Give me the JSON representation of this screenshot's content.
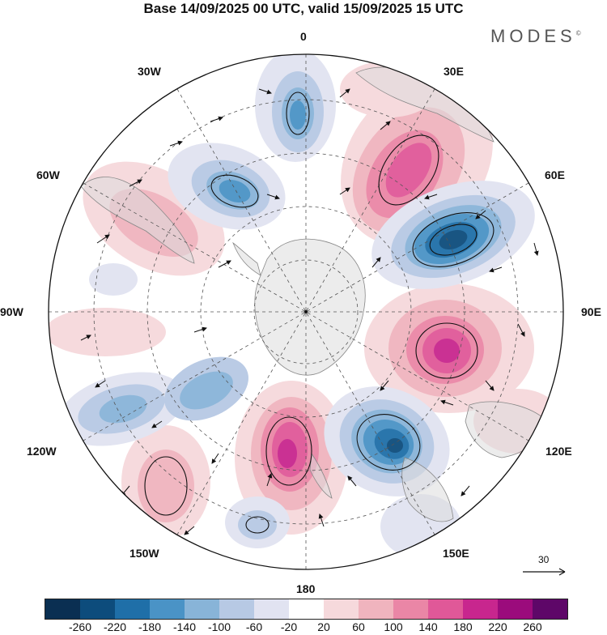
{
  "title": "Base 14/09/2025 00 UTC, valid 15/09/2025 15 UTC",
  "brand": "MODES",
  "brand_mark": "©",
  "longitude_labels": {
    "top": "0",
    "top_left": "30W",
    "top_right": "30E",
    "left_upper": "60W",
    "right_upper": "60E",
    "left": "90W",
    "right": "90E",
    "left_lower": "120W",
    "right_lower": "120E",
    "bottom_left": "150W",
    "bottom_right": "150E",
    "bottom": "180"
  },
  "reference_vector": {
    "value": "30",
    "icon": "arrow-right-icon"
  },
  "colorbar": {
    "colors": [
      "#0a2f52",
      "#0d4c7c",
      "#1f6fa8",
      "#4a93c6",
      "#88b4d8",
      "#b7c9e4",
      "#e1e3f1",
      "#ffffff",
      "#f6d9dc",
      "#f0b4be",
      "#ea86a6",
      "#e05898",
      "#c8268e",
      "#9b0b7c",
      "#5e0768"
    ],
    "ticks": [
      "-260",
      "-220",
      "-180",
      "-140",
      "-100",
      "-60",
      "-20",
      "20",
      "60",
      "100",
      "140",
      "180",
      "220",
      "260"
    ]
  },
  "map": {
    "type": "polar-stereographic-south",
    "field": "geopotential height anomaly with wind vectors",
    "anomaly_centers": [
      {
        "sign": "negative",
        "level": -100,
        "near": "0"
      },
      {
        "sign": "negative",
        "level": -140,
        "near": "30W-60W"
      },
      {
        "sign": "positive",
        "level": 180,
        "near": "30E-60E"
      },
      {
        "sign": "negative",
        "level": -200,
        "near": "60E-90E"
      },
      {
        "sign": "positive",
        "level": 180,
        "near": "90E-120E"
      },
      {
        "sign": "negative",
        "level": -200,
        "near": "150E"
      },
      {
        "sign": "positive",
        "level": 180,
        "near": "180"
      },
      {
        "sign": "negative",
        "level": -100,
        "near": "150W"
      },
      {
        "sign": "negative",
        "level": -100,
        "near": "120W"
      },
      {
        "sign": "positive",
        "level": 60,
        "near": "60W"
      }
    ]
  }
}
